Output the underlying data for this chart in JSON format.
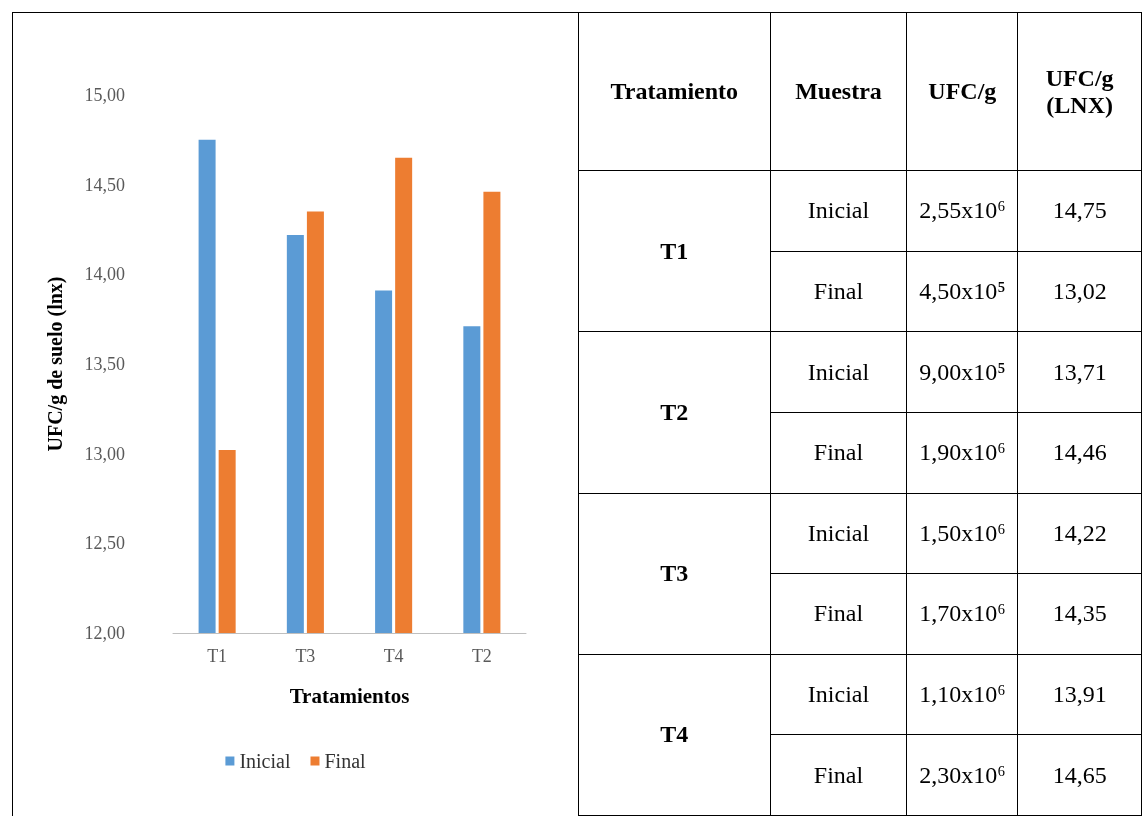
{
  "chart_data": [
    {
      "type": "bar",
      "xlabel": "Tratamientos",
      "ylabel": "UFC/g de suelo (lnx)",
      "categories": [
        "T1",
        "T3",
        "T4",
        "T2"
      ],
      "series": [
        {
          "name": "Inicial",
          "color": "#5b9bd5",
          "values": [
            14.75,
            14.22,
            13.91,
            13.71
          ]
        },
        {
          "name": "Final",
          "color": "#ed7d31",
          "values": [
            13.02,
            14.35,
            14.65,
            14.46
          ]
        }
      ],
      "ylim": [
        12,
        15
      ],
      "yticks": [
        {
          "value": 12,
          "label": "12,00"
        },
        {
          "value": 12.5,
          "label": "12,50"
        },
        {
          "value": 13,
          "label": "13,00"
        },
        {
          "value": 13.5,
          "label": "13,50"
        },
        {
          "value": 14,
          "label": "14,00"
        },
        {
          "value": 14.5,
          "label": "14,50"
        },
        {
          "value": 15,
          "label": "15,00"
        }
      ],
      "grid": false,
      "legend": "bottom"
    },
    {
      "type": "other",
      "annotations": [
        "Tratamiento",
        "Muestra",
        "UFC/g",
        "UFC/g (LNX)",
        "T1",
        "Inicial",
        "2,55x10⁶",
        "14,75",
        "Final",
        "4,50x10⁵",
        "13,02",
        "T2",
        "Inicial",
        "9,00x10⁵",
        "13,71",
        "Final",
        "1,90x10⁶",
        "14,46",
        "T3",
        "Inicial",
        "1,50x10⁶",
        "14,22",
        "Final",
        "1,70x10⁶",
        "14,35",
        "T4",
        "Inicial",
        "1,10x10⁶",
        "13,91",
        "Final",
        "2,30x10⁶",
        "14,65"
      ]
    }
  ]
}
